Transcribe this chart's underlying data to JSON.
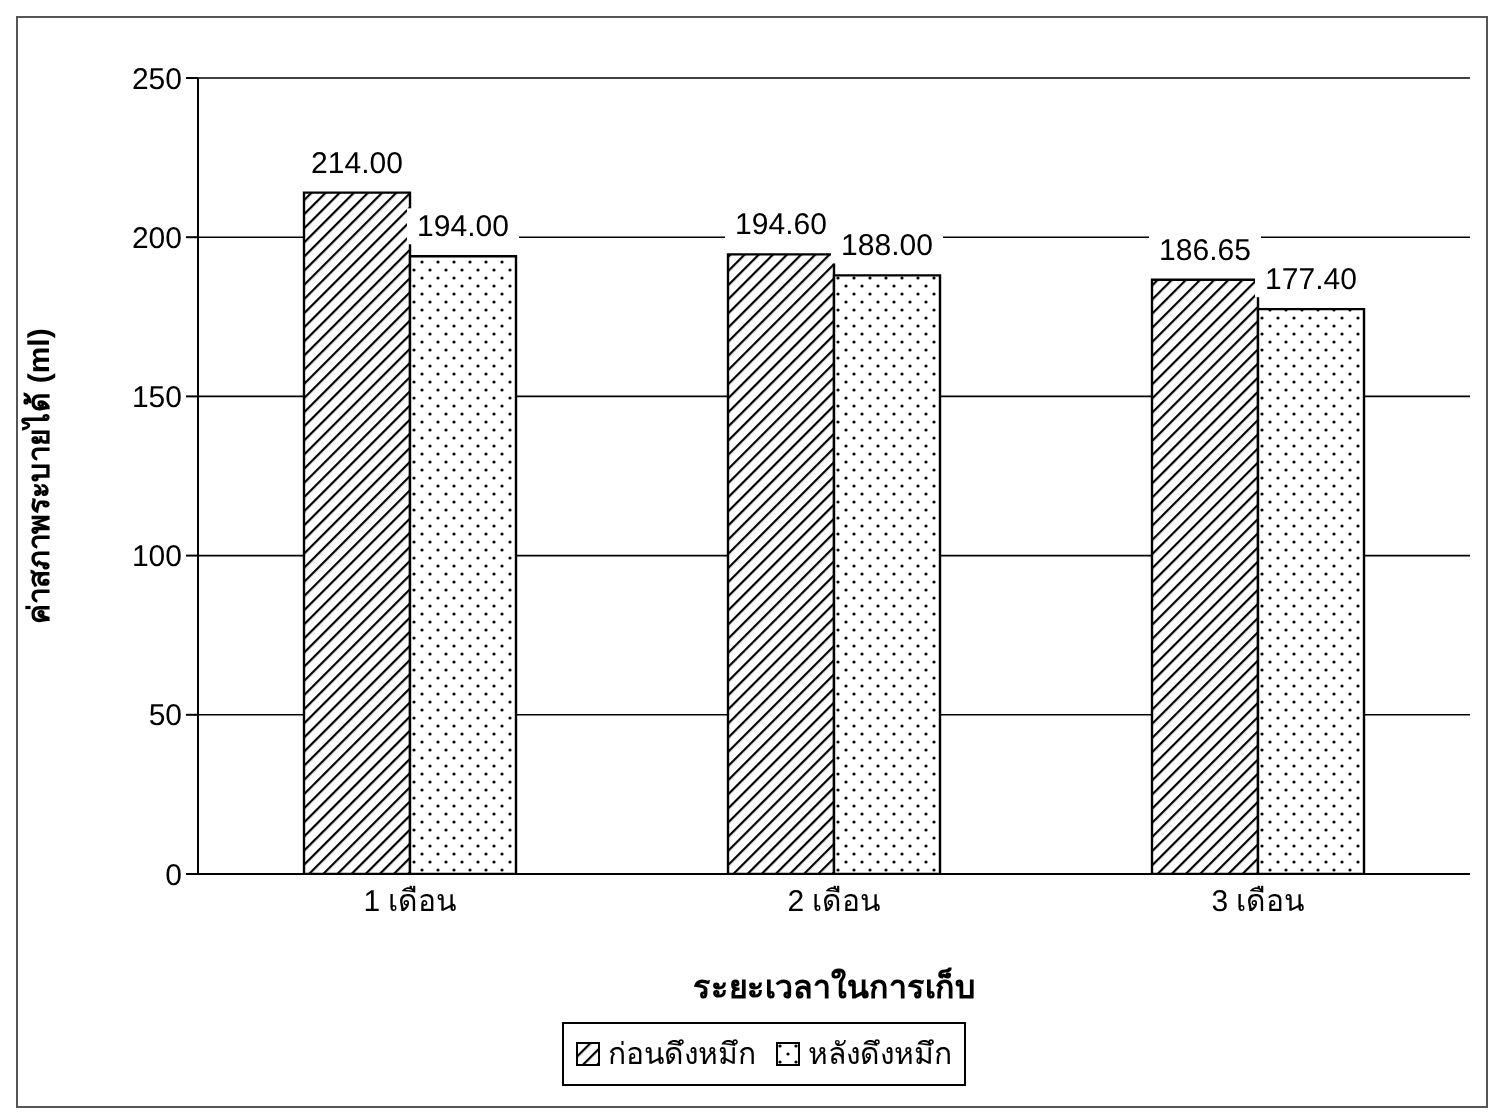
{
  "chart_data": {
    "type": "bar",
    "xlabel": "ระยะเวลาในการเก็บ",
    "ylabel": "ค่าสภาพระบายได้ (ml)",
    "categories": [
      "1 เดือน",
      "2 เดือน",
      "3 เดือน"
    ],
    "series": [
      {
        "name": "ก่อนดึงหมึก",
        "color": "#000000",
        "values": [
          214.0,
          194.6,
          186.65
        ]
      },
      {
        "name": "หลังดึงหมึก",
        "color": "#000000",
        "values": [
          194.0,
          188.0,
          177.4
        ]
      }
    ],
    "value_labels": [
      [
        "214.00",
        "194.60",
        "186.65"
      ],
      [
        "194.00",
        "188.00",
        "177.40"
      ]
    ],
    "ylim": [
      0,
      250
    ],
    "yticks": [
      0,
      50,
      100,
      150,
      200,
      250
    ],
    "grid": "y",
    "legend": "bottom"
  }
}
